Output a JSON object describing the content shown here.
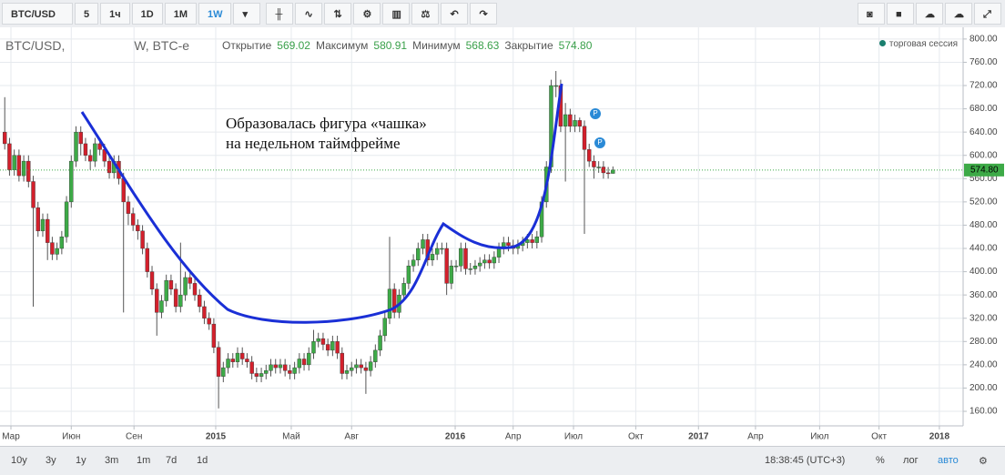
{
  "toolbar": {
    "symbol": "BTC/USD",
    "intervals": [
      "5",
      "1ч",
      "1D",
      "1M",
      "1W"
    ]
  },
  "legend_header": {
    "symbol": "BTC/USD,",
    "interval": "W, BTC-e",
    "open_label": "Открытие",
    "high_label": "Максимум",
    "low_label": "Минимум",
    "close_label": "Закрытие",
    "session": "торговая сессия"
  },
  "bottom_bar": {
    "ranges": [
      "10y",
      "3y",
      "1y",
      "3m",
      "1m",
      "7d",
      "1d"
    ],
    "time": "18:38:45 (UTC+3)",
    "percent": "%",
    "log": "лог",
    "auto": "авто"
  },
  "chart_data": {
    "type": "candlestick",
    "annotation": [
      "Образовалась фигура «чашка»",
      "на недельном таймфрейме"
    ],
    "up_color": "#3daa47",
    "down_color": "#d3202c",
    "grid": true,
    "xlim": [
      -1,
      201.7
    ],
    "ylim": [
      135,
      817
    ],
    "xticks": [
      {
        "value": 1.3,
        "label": "Мар"
      },
      {
        "value": 14,
        "label": "Июн"
      },
      {
        "value": 27.2,
        "label": "Сен"
      },
      {
        "value": 44.4,
        "label": "2015"
      },
      {
        "value": 60.3,
        "label": "Май"
      },
      {
        "value": 73,
        "label": "Авг"
      },
      {
        "value": 94.8,
        "label": "2016"
      },
      {
        "value": 107,
        "label": "Апр"
      },
      {
        "value": 119.7,
        "label": "Июл"
      },
      {
        "value": 132.8,
        "label": "Окт"
      },
      {
        "value": 146,
        "label": "2017"
      },
      {
        "value": 158,
        "label": "Апр"
      },
      {
        "value": 171.5,
        "label": "Июл"
      },
      {
        "value": 184,
        "label": "Окт"
      },
      {
        "value": 196.7,
        "label": "2018"
      }
    ],
    "yticks": [
      {
        "value": 160,
        "label": "160.00"
      },
      {
        "value": 200,
        "label": "200.00"
      },
      {
        "value": 240,
        "label": "240.00"
      },
      {
        "value": 280,
        "label": "280.00"
      },
      {
        "value": 320,
        "label": "320.00"
      },
      {
        "value": 360,
        "label": "360.00"
      },
      {
        "value": 400,
        "label": "400.00"
      },
      {
        "value": 440,
        "label": "440.00"
      },
      {
        "value": 480,
        "label": "480.00"
      },
      {
        "value": 520,
        "label": "520.00"
      },
      {
        "value": 560,
        "label": "560.00"
      },
      {
        "value": 600,
        "label": "600.00"
      },
      {
        "value": 640,
        "label": "640.00"
      },
      {
        "value": 680,
        "label": "680.00"
      },
      {
        "value": 720,
        "label": "720.00"
      },
      {
        "value": 760,
        "label": "760.00"
      },
      {
        "value": 800,
        "label": "800.00"
      }
    ],
    "open": [
      640,
      620,
      575,
      600,
      565,
      590,
      555,
      510,
      470,
      490,
      450,
      430,
      440,
      460,
      520,
      590,
      640,
      620,
      600,
      590,
      620,
      610,
      590,
      570,
      590,
      560,
      520,
      500,
      480,
      470,
      440,
      400,
      370,
      330,
      350,
      385,
      370,
      340,
      360,
      390,
      380,
      360,
      340,
      320,
      310,
      270,
      220,
      235,
      250,
      245,
      260,
      250,
      245,
      225,
      220,
      225,
      230,
      240,
      235,
      240,
      230,
      225,
      235,
      250,
      240,
      260,
      280,
      285,
      275,
      265,
      280,
      260,
      225,
      230,
      235,
      240,
      235,
      230,
      245,
      265,
      290,
      320,
      370,
      330,
      360,
      380,
      410,
      420,
      440,
      455,
      420,
      430,
      440,
      440,
      380,
      410,
      410,
      440,
      405,
      405,
      410,
      415,
      420,
      415,
      425,
      440,
      450,
      445,
      440,
      445,
      450,
      455,
      450,
      460,
      520,
      580,
      720,
      720,
      650,
      670,
      650,
      660,
      650,
      610,
      590,
      580,
      580,
      570,
      569.02
    ],
    "high": [
      700,
      630,
      610,
      610,
      600,
      600,
      565,
      520,
      500,
      500,
      460,
      450,
      470,
      530,
      600,
      650,
      650,
      630,
      610,
      630,
      630,
      620,
      600,
      600,
      600,
      570,
      530,
      510,
      490,
      480,
      450,
      410,
      380,
      360,
      395,
      395,
      380,
      450,
      400,
      400,
      390,
      370,
      350,
      330,
      320,
      280,
      245,
      260,
      260,
      270,
      270,
      260,
      255,
      235,
      235,
      240,
      250,
      250,
      250,
      250,
      240,
      245,
      260,
      260,
      270,
      300,
      295,
      295,
      285,
      290,
      290,
      270,
      240,
      245,
      250,
      250,
      245,
      255,
      275,
      300,
      330,
      460,
      380,
      370,
      390,
      420,
      430,
      450,
      465,
      465,
      440,
      450,
      450,
      450,
      420,
      420,
      450,
      450,
      415,
      420,
      425,
      430,
      430,
      435,
      450,
      460,
      460,
      455,
      455,
      460,
      465,
      465,
      470,
      530,
      590,
      730,
      745,
      730,
      690,
      680,
      670,
      665,
      660,
      620,
      600,
      590,
      590,
      580,
      580.91
    ],
    "low": [
      610,
      565,
      565,
      555,
      555,
      545,
      340,
      460,
      460,
      420,
      420,
      420,
      430,
      450,
      510,
      580,
      600,
      590,
      575,
      580,
      600,
      580,
      560,
      560,
      550,
      330,
      480,
      470,
      455,
      430,
      390,
      360,
      290,
      320,
      340,
      360,
      330,
      330,
      350,
      370,
      350,
      330,
      310,
      300,
      260,
      165,
      210,
      225,
      235,
      235,
      240,
      235,
      215,
      210,
      210,
      215,
      220,
      225,
      225,
      220,
      215,
      215,
      225,
      230,
      230,
      250,
      270,
      265,
      255,
      255,
      250,
      215,
      215,
      220,
      225,
      225,
      190,
      220,
      235,
      255,
      280,
      310,
      320,
      320,
      350,
      370,
      400,
      410,
      430,
      410,
      410,
      420,
      430,
      360,
      370,
      400,
      400,
      395,
      395,
      395,
      400,
      405,
      405,
      405,
      415,
      430,
      435,
      430,
      430,
      435,
      440,
      440,
      440,
      450,
      510,
      570,
      700,
      640,
      555,
      640,
      640,
      640,
      465,
      580,
      560,
      570,
      560,
      560,
      568.63
    ],
    "close": [
      620,
      575,
      600,
      565,
      590,
      555,
      510,
      470,
      490,
      450,
      430,
      440,
      460,
      520,
      590,
      640,
      620,
      600,
      590,
      620,
      610,
      590,
      570,
      590,
      560,
      520,
      500,
      480,
      470,
      440,
      400,
      370,
      330,
      350,
      385,
      370,
      340,
      360,
      390,
      380,
      360,
      340,
      320,
      310,
      270,
      220,
      235,
      250,
      245,
      260,
      250,
      245,
      225,
      220,
      225,
      230,
      240,
      235,
      240,
      230,
      225,
      235,
      250,
      240,
      260,
      280,
      285,
      275,
      265,
      280,
      260,
      225,
      230,
      235,
      240,
      235,
      230,
      245,
      265,
      290,
      320,
      370,
      330,
      360,
      380,
      410,
      420,
      440,
      455,
      420,
      430,
      440,
      440,
      380,
      410,
      410,
      440,
      405,
      405,
      410,
      415,
      420,
      415,
      425,
      440,
      450,
      445,
      440,
      445,
      450,
      455,
      450,
      460,
      520,
      580,
      720,
      720,
      650,
      670,
      650,
      660,
      650,
      610,
      590,
      580,
      580,
      570,
      569.02,
      574.8
    ],
    "last_close_label": "574.80"
  }
}
